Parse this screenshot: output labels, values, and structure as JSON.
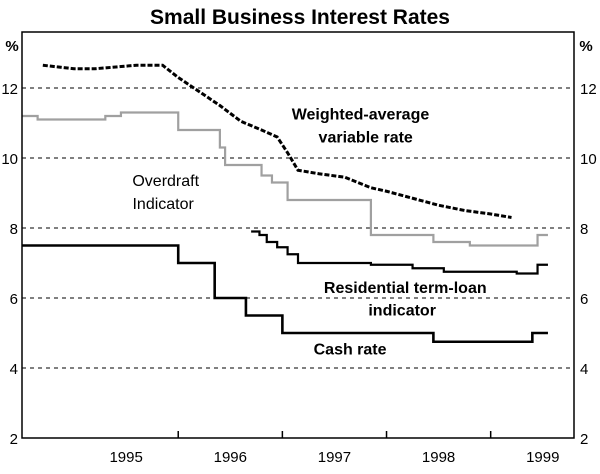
{
  "chart_data": {
    "type": "line",
    "title": "Small Business Interest Rates",
    "ylabel_left": "%",
    "ylabel_right": "%",
    "ylim": [
      2,
      13.6
    ],
    "yticks": [
      2,
      4,
      6,
      8,
      10,
      12
    ],
    "xlim": [
      1994.5,
      1999.8
    ],
    "xticks": [
      {
        "label": "1995",
        "value": 1995.0
      },
      {
        "label": "1996",
        "value": 1996.0
      },
      {
        "label": "1997",
        "value": 1997.0
      },
      {
        "label": "1998",
        "value": 1998.0
      },
      {
        "label": "1999",
        "value": 1999.0
      }
    ],
    "grid": "dashed horizontal",
    "series": [
      {
        "name": "Weighted-average variable rate",
        "color": "#000000",
        "style": "dashed-thick",
        "step": false,
        "points": [
          [
            1994.7,
            12.65
          ],
          [
            1994.85,
            12.6
          ],
          [
            1995.0,
            12.55
          ],
          [
            1995.2,
            12.55
          ],
          [
            1995.4,
            12.6
          ],
          [
            1995.6,
            12.65
          ],
          [
            1995.85,
            12.65
          ],
          [
            1996.0,
            12.3
          ],
          [
            1996.2,
            11.9
          ],
          [
            1996.4,
            11.5
          ],
          [
            1996.6,
            11.05
          ],
          [
            1996.8,
            10.8
          ],
          [
            1996.95,
            10.6
          ],
          [
            1997.05,
            10.15
          ],
          [
            1997.15,
            9.65
          ],
          [
            1997.35,
            9.55
          ],
          [
            1997.6,
            9.45
          ],
          [
            1997.85,
            9.15
          ],
          [
            1998.0,
            9.05
          ],
          [
            1998.25,
            8.85
          ],
          [
            1998.5,
            8.65
          ],
          [
            1998.75,
            8.5
          ],
          [
            1999.0,
            8.4
          ],
          [
            1999.2,
            8.3
          ]
        ]
      },
      {
        "name": "Overdraft Indicator",
        "color": "#a0a0a0",
        "style": "solid",
        "step": true,
        "points": [
          [
            1994.5,
            11.2
          ],
          [
            1994.65,
            11.1
          ],
          [
            1995.3,
            11.2
          ],
          [
            1995.45,
            11.3
          ],
          [
            1996.0,
            10.8
          ],
          [
            1996.4,
            10.3
          ],
          [
            1996.45,
            9.8
          ],
          [
            1996.8,
            9.5
          ],
          [
            1996.9,
            9.3
          ],
          [
            1997.05,
            8.8
          ],
          [
            1997.85,
            7.8
          ],
          [
            1998.45,
            7.6
          ],
          [
            1998.8,
            7.5
          ],
          [
            1999.45,
            7.8
          ],
          [
            1999.55,
            7.8
          ]
        ]
      },
      {
        "name": "Residential term-loan indicator",
        "color": "#000000",
        "style": "solid",
        "step": true,
        "points": [
          [
            1996.7,
            7.9
          ],
          [
            1996.78,
            7.8
          ],
          [
            1996.85,
            7.6
          ],
          [
            1996.95,
            7.45
          ],
          [
            1997.05,
            7.25
          ],
          [
            1997.15,
            7.0
          ],
          [
            1997.85,
            6.95
          ],
          [
            1998.25,
            6.85
          ],
          [
            1998.55,
            6.75
          ],
          [
            1998.85,
            6.75
          ],
          [
            1999.05,
            6.75
          ],
          [
            1999.25,
            6.7
          ],
          [
            1999.45,
            6.95
          ],
          [
            1999.55,
            6.95
          ]
        ]
      },
      {
        "name": "Cash rate",
        "color": "#000000",
        "style": "solid-thick",
        "step": true,
        "points": [
          [
            1994.5,
            7.5
          ],
          [
            1996.0,
            7.0
          ],
          [
            1996.35,
            6.0
          ],
          [
            1996.65,
            5.5
          ],
          [
            1997.0,
            5.0
          ],
          [
            1998.45,
            4.75
          ],
          [
            1999.4,
            5.0
          ],
          [
            1999.55,
            5.0
          ]
        ]
      }
    ],
    "annotations": [
      {
        "key": "wav1",
        "text": "Weighted-average",
        "x": 1997.75,
        "y": 11.1,
        "color": "#000000",
        "anchor": "middle"
      },
      {
        "key": "wav2",
        "text": "variable rate",
        "x": 1997.8,
        "y": 10.45,
        "color": "#000000",
        "anchor": "middle"
      },
      {
        "key": "od1",
        "text": "Overdraft",
        "x": 1996.2,
        "y": 9.2,
        "color": "#a0a0a0",
        "anchor": "end"
      },
      {
        "key": "od2",
        "text": "Indicator",
        "x": 1996.15,
        "y": 8.55,
        "color": "#a0a0a0",
        "anchor": "end"
      },
      {
        "key": "rt1",
        "text": "Residential term-loan",
        "x": 1998.18,
        "y": 6.15,
        "color": "#000000",
        "anchor": "middle"
      },
      {
        "key": "rt2",
        "text": "indicator",
        "x": 1998.15,
        "y": 5.5,
        "color": "#000000",
        "anchor": "middle"
      },
      {
        "key": "cash",
        "text": "Cash rate",
        "x": 1997.65,
        "y": 4.38,
        "color": "#000000",
        "anchor": "middle"
      }
    ]
  }
}
